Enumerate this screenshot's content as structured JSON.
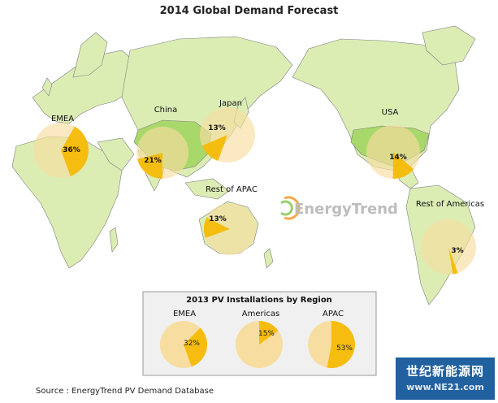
{
  "title": "2014 Global Demand Forecast",
  "watermark": "EnergyTrend",
  "source": "Source : EnergyTrend PV Demand Database",
  "badge": {
    "line1": "世纪新能源网",
    "line2": "www.NE21.com"
  },
  "colors": {
    "slice": "#f5b800",
    "bubble": "#f7dda0",
    "land": "#dcedb4",
    "highlight": "#a9d86a",
    "inset_bg": "#f0f0f0",
    "badge": "#21619f"
  },
  "chart_data": [
    {
      "type": "pie",
      "title": "2014 Global Demand Forecast",
      "slices": [
        {
          "id": "emea",
          "label": "EMEA",
          "value": 36,
          "text": "36%"
        },
        {
          "id": "china",
          "label": "China",
          "value": 21,
          "text": "21%"
        },
        {
          "id": "japan",
          "label": "Japan",
          "value": 13,
          "text": "13%"
        },
        {
          "id": "rest-of-apac",
          "label": "Rest of APAC",
          "value": 13,
          "text": "13%"
        },
        {
          "id": "usa",
          "label": "USA",
          "value": 14,
          "text": "14%"
        },
        {
          "id": "rest-of-americas",
          "label": "Rest of Americas",
          "value": 3,
          "text": "3%"
        }
      ]
    },
    {
      "type": "pie",
      "title": "2013 PV Installations by Region",
      "slices": [
        {
          "id": "emea",
          "label": "EMEA",
          "value": 32,
          "text": "32%"
        },
        {
          "id": "americas",
          "label": "Americas",
          "value": 15,
          "text": "15%"
        },
        {
          "id": "apac",
          "label": "APAC",
          "value": 53,
          "text": "53%"
        }
      ]
    }
  ]
}
